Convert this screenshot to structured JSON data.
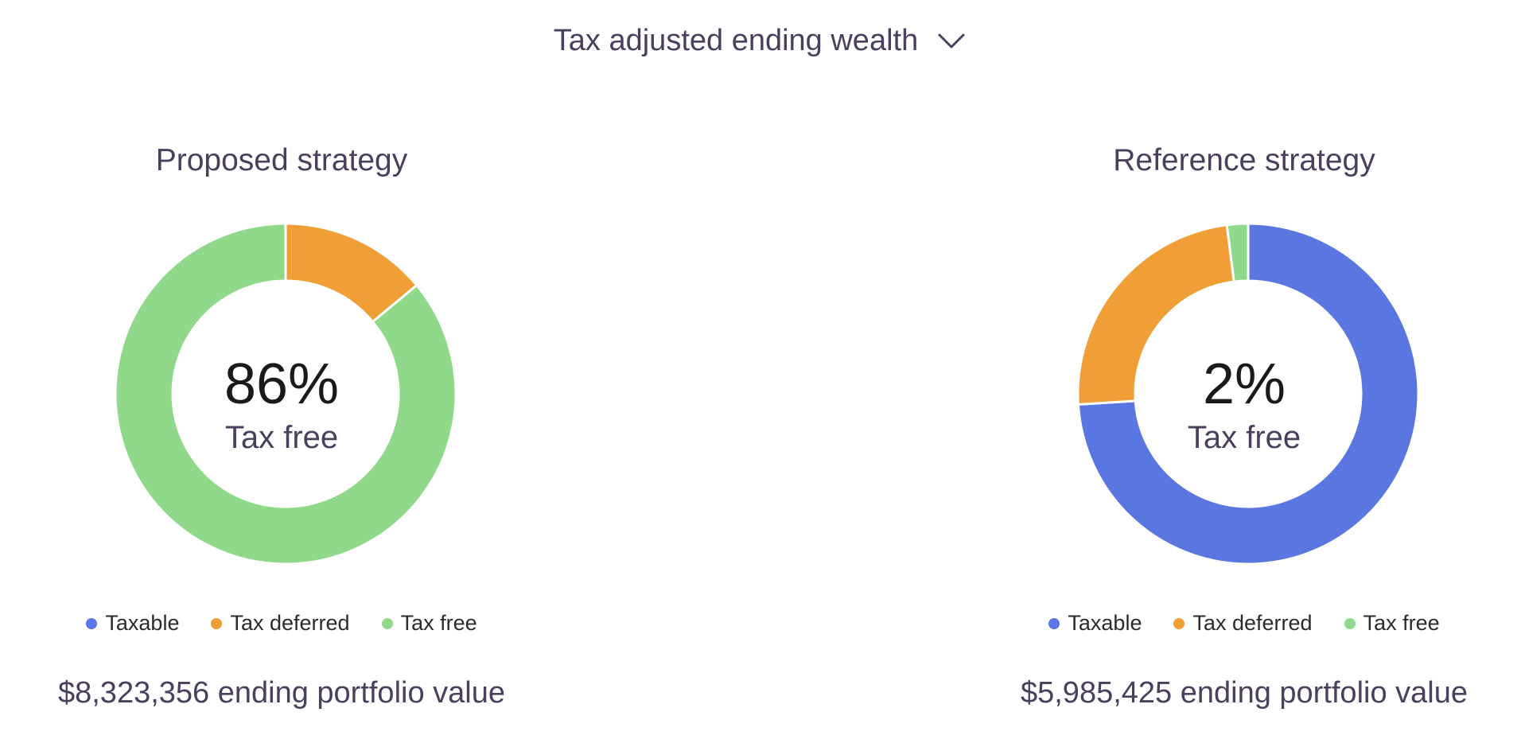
{
  "header": {
    "title": "Tax adjusted ending wealth",
    "dropdown_icon": "chevron-down-icon"
  },
  "colors": {
    "taxable": "#5a76e0",
    "tax_deferred": "#f09f36",
    "tax_free": "#90d98b"
  },
  "chart_data": [
    {
      "type": "pie",
      "title": "Proposed strategy",
      "categories": [
        "Taxable",
        "Tax deferred",
        "Tax free"
      ],
      "values": [
        0,
        14,
        86
      ],
      "center_value": "86%",
      "center_label": "Tax free",
      "legend": [
        "Taxable",
        "Tax deferred",
        "Tax free"
      ],
      "footer": "$8,323,356 ending portfolio value"
    },
    {
      "type": "pie",
      "title": "Reference strategy",
      "categories": [
        "Taxable",
        "Tax deferred",
        "Tax free"
      ],
      "values": [
        74,
        24,
        2
      ],
      "center_value": "2%",
      "center_label": "Tax free",
      "legend": [
        "Taxable",
        "Tax deferred",
        "Tax free"
      ],
      "footer": "$5,985,425 ending portfolio value"
    }
  ]
}
